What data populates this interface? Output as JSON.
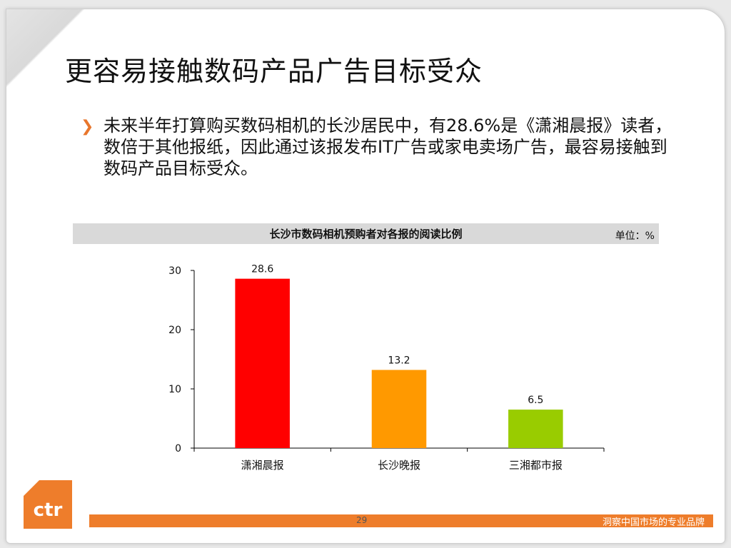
{
  "slide": {
    "title": "更容易接触数码产品广告目标受众",
    "bullet_icon": "chevron-right-icon",
    "bullet": "未来半年打算购买数码相机的长沙居民中，有28.6%是《潇湘晨报》读者，数倍于其他报纸，因此通过该报发布IT广告或家电卖场广告，最容易接触到数码产品目标受众。",
    "page_number": "29",
    "slogan": "洞察中国市场的专业品牌",
    "logo_text": "ctr",
    "accent_color": "#ee7d2b"
  },
  "chart_data": {
    "type": "bar",
    "title": "长沙市数码相机预购者对各报的阅读比例",
    "unit": "单位：%",
    "categories": [
      "潇湘晨报",
      "长沙晚报",
      "三湘都市报"
    ],
    "values": [
      28.6,
      13.2,
      6.5
    ],
    "data_labels": [
      "28.6",
      "13.2",
      "6.5"
    ],
    "colors": [
      "#ff0000",
      "#ff9900",
      "#99cc00"
    ],
    "ylim": [
      0,
      30
    ],
    "yticks": [
      0,
      10,
      20,
      30
    ],
    "grid": false,
    "legend": "none"
  }
}
